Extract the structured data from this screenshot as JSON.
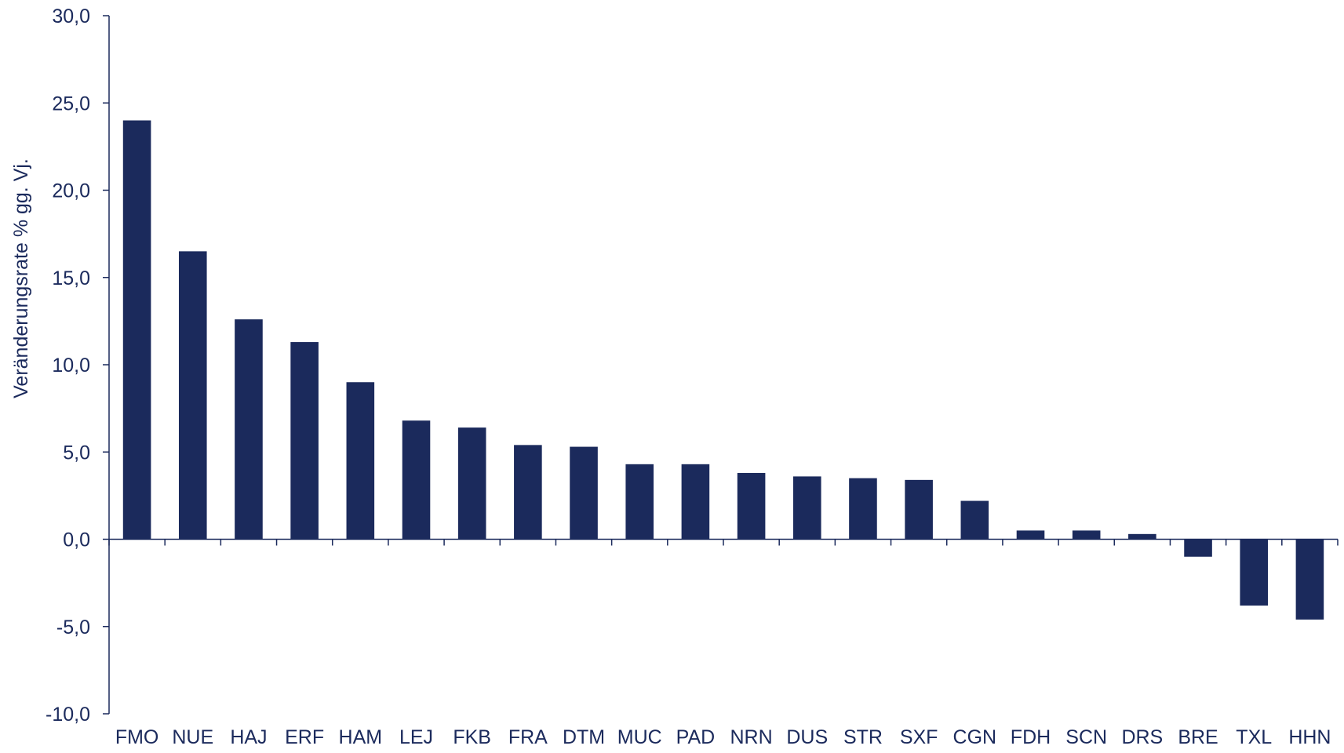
{
  "chart_data": {
    "type": "bar",
    "title": "",
    "xlabel": "",
    "ylabel": "Veränderungsrate % gg. Vj.",
    "ylim": [
      -10,
      30
    ],
    "yticks": [
      30,
      25,
      20,
      15,
      10,
      5,
      0,
      -5,
      -10
    ],
    "ytick_labels": [
      "30,0",
      "25,0",
      "20,0",
      "15,0",
      "10,0",
      "5,0",
      "0,0",
      "-5,0",
      "-10,0"
    ],
    "categories": [
      "FMO",
      "NUE",
      "HAJ",
      "ERF",
      "HAM",
      "LEJ",
      "FKB",
      "FRA",
      "DTM",
      "MUC",
      "PAD",
      "NRN",
      "DUS",
      "STR",
      "SXF",
      "CGN",
      "FDH",
      "SCN",
      "DRS",
      "BRE",
      "TXL",
      "HHN"
    ],
    "values": [
      24.0,
      16.5,
      12.6,
      11.3,
      9.0,
      6.8,
      6.4,
      5.4,
      5.3,
      4.3,
      4.3,
      3.8,
      3.6,
      3.5,
      3.4,
      2.2,
      0.5,
      0.5,
      0.3,
      -1.0,
      -3.8,
      -4.6
    ],
    "grid": false,
    "legend": "none",
    "colors": {
      "bar": "#1b2a5c",
      "axis": "#1b2a5c",
      "text": "#1b2a5c"
    }
  }
}
